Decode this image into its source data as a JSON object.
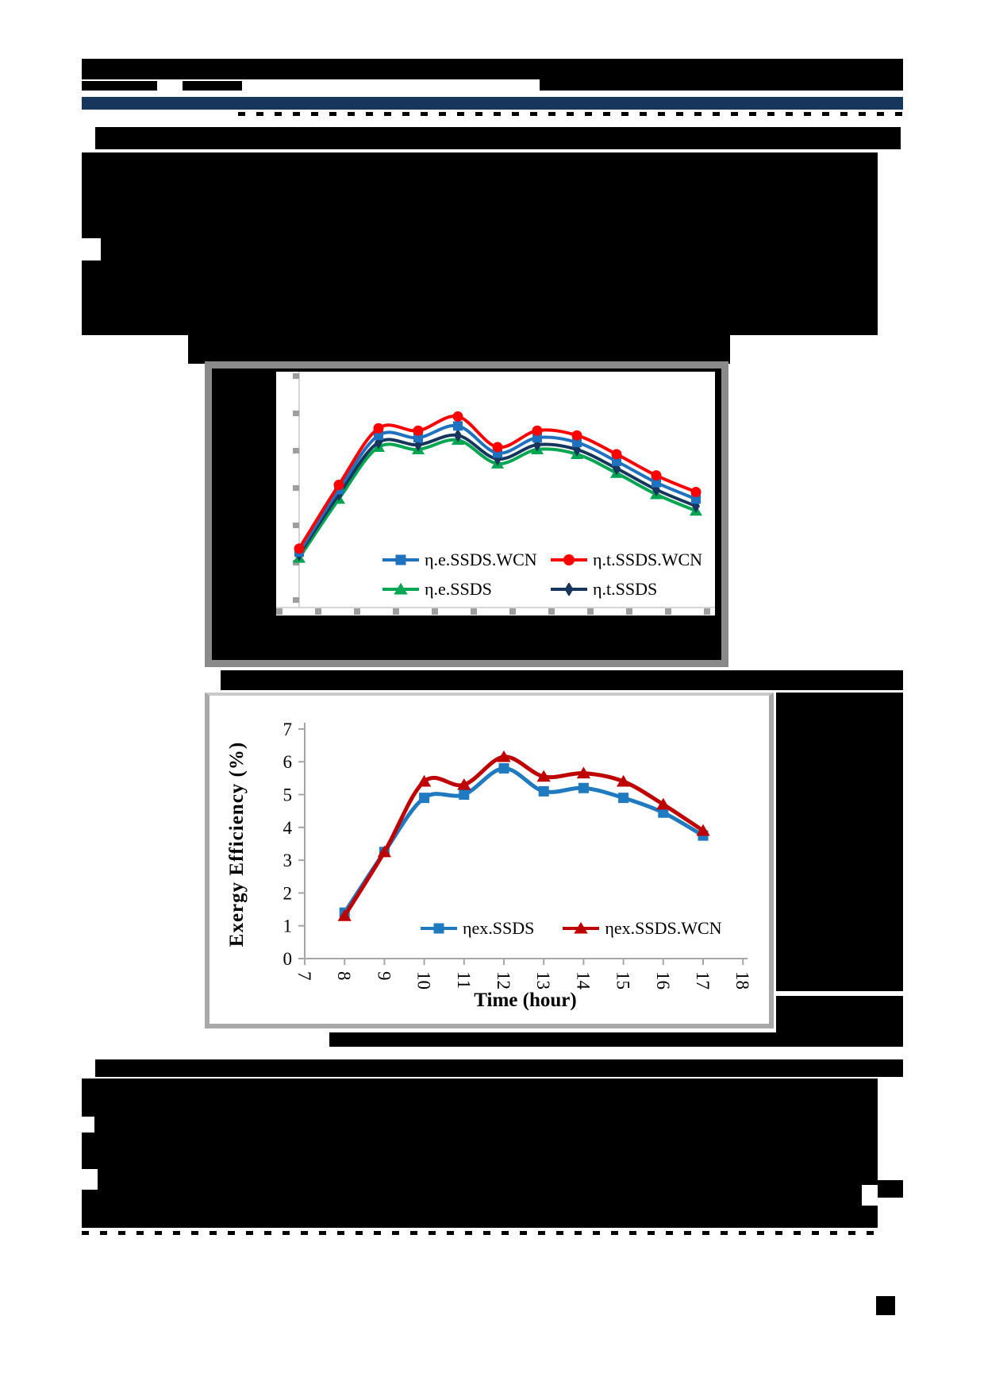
{
  "page": {
    "background": "#ffffff",
    "redaction_color": "#000000",
    "divider_bar_color": "#16365c"
  },
  "figure1": {
    "frame_color": "#8a8a8a",
    "matte_color": "#000000",
    "plot_background": "#ffffff",
    "axis_color": "#c9c9c9",
    "tick_color": "#9e9e9e"
  },
  "figure2": {
    "frame_color": "#a8a8a8",
    "plot_background": "#ffffff",
    "axis_color": "#a6a6a6"
  },
  "chart_data": [
    {
      "type": "line",
      "title": "",
      "x_labels_redacted": true,
      "y_labels_redacted": true,
      "note": "Axis tick labels are blacked out in the source scan; series values are relative heights (0-1 of plot area), 11 evenly spaced time points.",
      "y_tick_count": 7,
      "x_tick_count": 12,
      "legend_position": "inside bottom-center, 2 columns",
      "series": [
        {
          "name": "η.e.SSDS.WCN",
          "marker": "square",
          "color": "#1f72c0",
          "values_relative": [
            0.235,
            0.5,
            0.73,
            0.72,
            0.77,
            0.655,
            0.72,
            0.7,
            0.62,
            0.53,
            0.46
          ]
        },
        {
          "name": "η.t.SSDS.WCN",
          "marker": "circle",
          "color": "#fe0000",
          "values_relative": [
            0.25,
            0.52,
            0.76,
            0.75,
            0.81,
            0.68,
            0.75,
            0.73,
            0.65,
            0.56,
            0.49
          ]
        },
        {
          "name": "η.e.SSDS",
          "marker": "triangle",
          "color": "#00a651",
          "values_relative": [
            0.21,
            0.46,
            0.68,
            0.67,
            0.71,
            0.61,
            0.67,
            0.65,
            0.57,
            0.48,
            0.41
          ]
        },
        {
          "name": "η.t.SSDS",
          "marker": "diamond",
          "color": "#17365d",
          "values_relative": [
            0.225,
            0.48,
            0.7,
            0.69,
            0.73,
            0.63,
            0.69,
            0.67,
            0.59,
            0.5,
            0.43
          ]
        }
      ]
    },
    {
      "type": "line",
      "xlabel": "Time (hour)",
      "ylabel": "Exergy Efficiency (%)",
      "xlim": [
        7,
        18
      ],
      "ylim": [
        0,
        7
      ],
      "x_ticks": [
        7,
        8,
        9,
        10,
        11,
        12,
        13,
        14,
        15,
        16,
        17,
        18
      ],
      "y_ticks": [
        0,
        1,
        2,
        3,
        4,
        5,
        6,
        7
      ],
      "grid": false,
      "legend_position": "inside bottom-center",
      "x": [
        8,
        9,
        10,
        11,
        12,
        13,
        14,
        15,
        16,
        17
      ],
      "series": [
        {
          "name": "ηex.SSDS",
          "marker": "square",
          "color": "#1f7ac0",
          "values": [
            1.4,
            3.25,
            4.9,
            5.0,
            5.8,
            5.1,
            5.2,
            4.9,
            4.45,
            3.75
          ]
        },
        {
          "name": "ηex.SSDS.WCN",
          "marker": "triangle",
          "color": "#bf0000",
          "values": [
            1.3,
            3.25,
            5.4,
            5.3,
            6.15,
            5.55,
            5.65,
            5.4,
            4.7,
            3.9
          ]
        }
      ]
    }
  ]
}
